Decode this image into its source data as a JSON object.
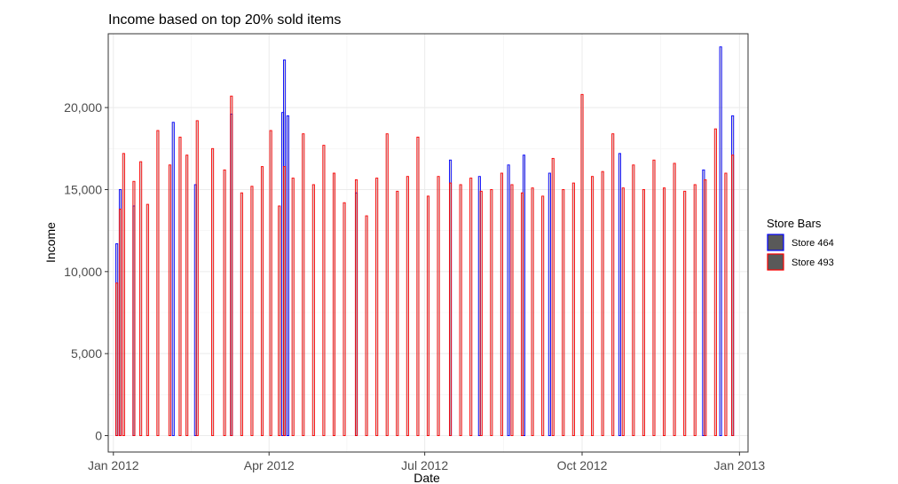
{
  "chart_data": {
    "type": "bar",
    "title": "Income based on top 20% sold items",
    "xlabel": "Date",
    "ylabel": "Income",
    "x_range": [
      "2011-12-29",
      "2013-01-06"
    ],
    "ylim": [
      -1000,
      24500
    ],
    "x_ticks": [
      {
        "date": "2012-01-01",
        "label": "Jan 2012"
      },
      {
        "date": "2012-04-01",
        "label": "Apr 2012"
      },
      {
        "date": "2012-07-01",
        "label": "Jul 2012"
      },
      {
        "date": "2012-10-01",
        "label": "Oct 2012"
      },
      {
        "date": "2013-01-01",
        "label": "Jan 2013"
      }
    ],
    "y_ticks": [
      {
        "value": 0,
        "label": "0"
      },
      {
        "value": 5000,
        "label": "5,000"
      },
      {
        "value": 10000,
        "label": "10,000"
      },
      {
        "value": 15000,
        "label": "15,000"
      },
      {
        "value": 20000,
        "label": "20,000"
      }
    ],
    "grid": true,
    "legend": {
      "title": "Store Bars",
      "position": "right"
    },
    "series": [
      {
        "name": "Store 464",
        "color": "#0000ff",
        "x": [
          "2012-01-03",
          "2012-01-05",
          "2012-01-13",
          "2012-02-05",
          "2012-02-18",
          "2012-03-10",
          "2012-04-09",
          "2012-04-10",
          "2012-04-12",
          "2012-05-22",
          "2012-07-16",
          "2012-08-02",
          "2012-08-19",
          "2012-08-28",
          "2012-09-12",
          "2012-10-23",
          "2012-12-11",
          "2012-12-21",
          "2012-12-28"
        ],
        "values": [
          11700,
          15000,
          14000,
          19100,
          15300,
          19600,
          19700,
          22900,
          19500,
          14800,
          16800,
          15800,
          16500,
          17100,
          16000,
          17200,
          16200,
          23700,
          19500
        ]
      },
      {
        "name": "Store 493",
        "color": "#ff0000",
        "x": [
          "2012-01-03",
          "2012-01-05",
          "2012-01-07",
          "2012-01-13",
          "2012-01-17",
          "2012-01-21",
          "2012-01-27",
          "2012-02-03",
          "2012-02-09",
          "2012-02-13",
          "2012-02-19",
          "2012-02-28",
          "2012-03-06",
          "2012-03-10",
          "2012-03-16",
          "2012-03-22",
          "2012-03-28",
          "2012-04-02",
          "2012-04-07",
          "2012-04-10",
          "2012-04-15",
          "2012-04-21",
          "2012-04-27",
          "2012-05-03",
          "2012-05-09",
          "2012-05-15",
          "2012-05-22",
          "2012-05-28",
          "2012-06-03",
          "2012-06-09",
          "2012-06-15",
          "2012-06-21",
          "2012-06-27",
          "2012-07-03",
          "2012-07-09",
          "2012-07-16",
          "2012-07-22",
          "2012-07-28",
          "2012-08-03",
          "2012-08-09",
          "2012-08-15",
          "2012-08-21",
          "2012-08-27",
          "2012-09-02",
          "2012-09-08",
          "2012-09-14",
          "2012-09-20",
          "2012-09-26",
          "2012-10-01",
          "2012-10-07",
          "2012-10-13",
          "2012-10-19",
          "2012-10-25",
          "2012-10-31",
          "2012-11-06",
          "2012-11-12",
          "2012-11-18",
          "2012-11-24",
          "2012-11-30",
          "2012-12-06",
          "2012-12-12",
          "2012-12-18",
          "2012-12-24",
          "2012-12-28"
        ],
        "values": [
          9300,
          13800,
          17200,
          15500,
          16700,
          14100,
          18600,
          16500,
          18200,
          17100,
          19200,
          17500,
          16200,
          20700,
          14800,
          15200,
          16400,
          18600,
          14000,
          16400,
          15700,
          18400,
          15300,
          17700,
          16000,
          14200,
          15600,
          13400,
          15700,
          18400,
          14900,
          15800,
          18200,
          14600,
          15800,
          15400,
          15300,
          15700,
          14900,
          15000,
          16000,
          15300,
          14800,
          15100,
          14600,
          16900,
          15000,
          15400,
          20800,
          15800,
          16100,
          18400,
          15100,
          16500,
          15000,
          16800,
          15100,
          16600,
          14900,
          15300,
          15600,
          18700,
          16000,
          17100
        ]
      }
    ]
  }
}
